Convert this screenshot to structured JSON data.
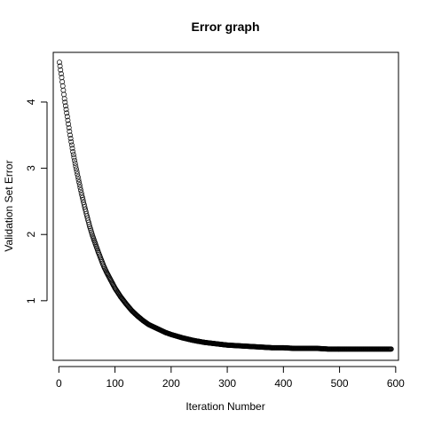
{
  "chart_data": {
    "type": "scatter",
    "title": "Error graph",
    "xlabel": "Iteration Number",
    "ylabel": "Validation Set Error",
    "xlim": [
      -10,
      605
    ],
    "ylim": [
      0.1,
      4.75
    ],
    "xticks": [
      0,
      100,
      200,
      300,
      400,
      500,
      600
    ],
    "yticks": [
      1,
      2,
      3,
      4
    ],
    "xtick_labels": [
      "0",
      "100",
      "200",
      "300",
      "400",
      "500",
      "600"
    ],
    "ytick_labels": [
      "1",
      "2",
      "3",
      "4"
    ],
    "grid": false,
    "legend": null,
    "marker": "open-circle",
    "color": "#000000",
    "series": [
      {
        "x": [
          1,
          5,
          10,
          15,
          20,
          25,
          30,
          35,
          40,
          45,
          50,
          55,
          60,
          65,
          70,
          75,
          80,
          85,
          90,
          95,
          100,
          110,
          120,
          130,
          140,
          150,
          160,
          170,
          180,
          190,
          200,
          220,
          240,
          260,
          280,
          300,
          320,
          340,
          360,
          380,
          400,
          420,
          440,
          460,
          480,
          500,
          520,
          540,
          560,
          580,
          592
        ],
        "y": [
          4.6,
          4.37,
          4.05,
          3.78,
          3.5,
          3.25,
          3.03,
          2.83,
          2.63,
          2.45,
          2.28,
          2.12,
          1.98,
          1.86,
          1.74,
          1.63,
          1.52,
          1.43,
          1.35,
          1.27,
          1.19,
          1.06,
          0.95,
          0.85,
          0.77,
          0.7,
          0.64,
          0.6,
          0.56,
          0.52,
          0.49,
          0.44,
          0.4,
          0.37,
          0.35,
          0.33,
          0.32,
          0.31,
          0.3,
          0.29,
          0.29,
          0.28,
          0.28,
          0.28,
          0.27,
          0.27,
          0.27,
          0.27,
          0.27,
          0.27,
          0.27
        ]
      }
    ]
  }
}
